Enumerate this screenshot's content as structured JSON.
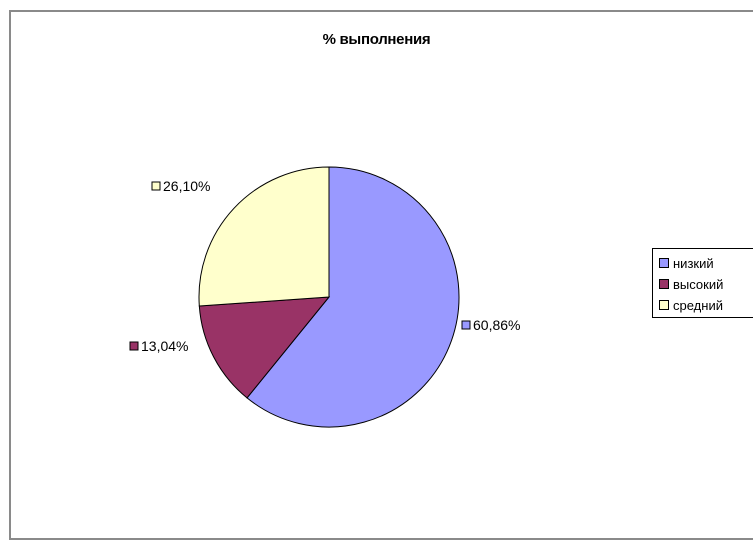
{
  "chart_data": {
    "type": "pie",
    "title": "% выполнения",
    "categories": [
      "низкий",
      "высокий",
      "средний"
    ],
    "values": [
      60.86,
      13.04,
      26.1
    ],
    "data_labels": [
      "60,86%",
      "13,04%",
      "26,10%"
    ],
    "colors": [
      "#9999ff",
      "#993366",
      "#ffffcc"
    ],
    "legend_position": "right"
  }
}
